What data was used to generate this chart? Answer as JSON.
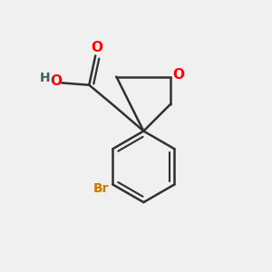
{
  "bg_color": "#f0f0f0",
  "bond_color": "#303030",
  "oxygen_color": "#ff0000",
  "bromine_color": "#cc7700",
  "hydrogen_color": "#406060",
  "line_width": 1.8,
  "fig_width": 3.0,
  "fig_height": 3.0,
  "dpi": 100,
  "xlim": [
    0.0,
    1.0
  ],
  "ylim": [
    0.0,
    1.0
  ]
}
